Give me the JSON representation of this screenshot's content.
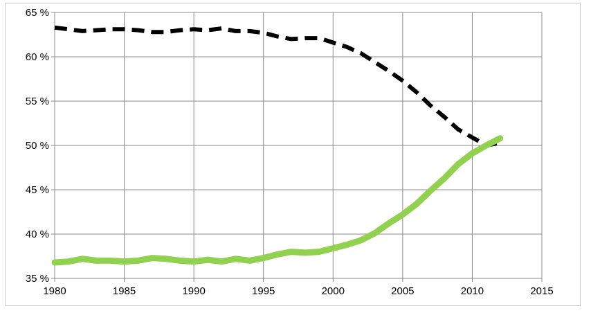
{
  "chart_data": {
    "type": "line",
    "title": "",
    "xlabel": "",
    "ylabel": "",
    "xlim": [
      1980,
      2015
    ],
    "ylim": [
      35,
      65
    ],
    "x_ticks": [
      1980,
      1985,
      1990,
      1995,
      2000,
      2005,
      2010,
      2015
    ],
    "x_tick_labels": [
      "1980",
      "1985",
      "1990",
      "1995",
      "2000",
      "2005",
      "2010",
      "2015"
    ],
    "y_ticks": [
      35,
      40,
      45,
      50,
      55,
      60,
      65
    ],
    "y_tick_labels": [
      "35 %",
      "40 %",
      "45 %",
      "50 %",
      "55 %",
      "60 %",
      "65 %"
    ],
    "grid": true,
    "legend": "none",
    "series": [
      {
        "style": "dashed",
        "color": "#000000",
        "x": [
          1980,
          1981,
          1982,
          1983,
          1984,
          1985,
          1986,
          1987,
          1988,
          1989,
          1990,
          1991,
          1992,
          1993,
          1994,
          1995,
          1996,
          1997,
          1998,
          1999,
          2000,
          2001,
          2002,
          2003,
          2004,
          2005,
          2006,
          2007,
          2008,
          2009,
          2010,
          2011,
          2012
        ],
        "values": [
          63.3,
          63.1,
          62.9,
          63.0,
          63.1,
          63.1,
          63.0,
          62.8,
          62.8,
          63.0,
          63.1,
          63.0,
          63.2,
          62.9,
          62.9,
          62.7,
          62.3,
          62.0,
          62.1,
          62.1,
          61.6,
          61.1,
          60.4,
          59.4,
          58.4,
          57.3,
          56.0,
          54.5,
          53.2,
          51.8,
          50.9,
          50.0,
          50.3
        ]
      },
      {
        "style": "solid",
        "color": "#92d050",
        "x": [
          1980,
          1981,
          1982,
          1983,
          1984,
          1985,
          1986,
          1987,
          1988,
          1989,
          1990,
          1991,
          1992,
          1993,
          1994,
          1995,
          1996,
          1997,
          1998,
          1999,
          2000,
          2001,
          2002,
          2003,
          2004,
          2005,
          2006,
          2007,
          2008,
          2009,
          2010,
          2011,
          2012
        ],
        "values": [
          36.8,
          36.9,
          37.2,
          37.0,
          37.0,
          36.9,
          37.0,
          37.3,
          37.2,
          37.0,
          36.9,
          37.1,
          36.9,
          37.2,
          37.0,
          37.3,
          37.7,
          38.0,
          37.9,
          38.0,
          38.4,
          38.8,
          39.3,
          40.1,
          41.2,
          42.2,
          43.4,
          44.9,
          46.3,
          47.9,
          49.1,
          50.0,
          50.8
        ]
      }
    ]
  }
}
